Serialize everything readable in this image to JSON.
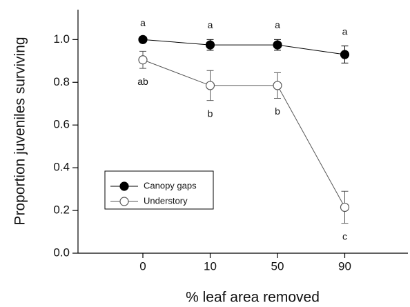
{
  "chart_data": {
    "type": "line",
    "x_label": "% leaf area removed",
    "y_label": "Proportion juveniles surviving",
    "categories": [
      "0",
      "10",
      "50",
      "90"
    ],
    "ylim": [
      0,
      1.14
    ],
    "yticks": [
      {
        "value": 0,
        "label": "0.0"
      },
      0.2,
      0.4,
      0.6,
      0.8,
      {
        "value": 1,
        "label": "1.0"
      }
    ],
    "legend": "lower-left",
    "series": [
      {
        "name": "Canopy gaps",
        "color": "#000000",
        "marker": "filled",
        "values": [
          1.0,
          0.975,
          0.975,
          0.93
        ],
        "errors": [
          0.01,
          0.025,
          0.025,
          0.04
        ],
        "letters": [
          "a",
          "a",
          "a",
          "a"
        ]
      },
      {
        "name": "Understory",
        "color": "#555555",
        "marker": "open",
        "values": [
          0.905,
          0.785,
          0.785,
          0.215
        ],
        "errors": [
          0.04,
          0.07,
          0.06,
          0.075
        ],
        "letters": [
          "ab",
          "b",
          "b",
          "c"
        ]
      }
    ]
  }
}
